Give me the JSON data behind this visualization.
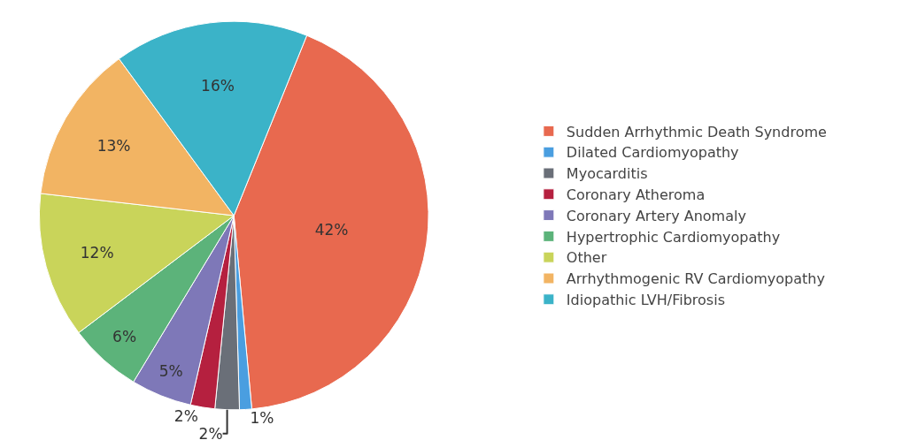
{
  "chart_data": {
    "type": "pie",
    "categories": [
      "Sudden Arrhythmic Death Syndrome",
      "Dilated Cardiomyopathy",
      "Myocarditis",
      "Coronary Atheroma",
      "Coronary Artery Anomaly",
      "Hypertrophic Cardiomyopathy",
      "Other",
      "Arrhythmogenic RV Cardiomyopathy",
      "Idiopathic LVH/Fibrosis"
    ],
    "values": [
      42,
      1,
      2,
      2,
      5,
      6,
      12,
      13,
      16
    ],
    "value_labels": [
      "42%",
      "1%",
      "2%",
      "2%",
      "5%",
      "6%",
      "12%",
      "13%",
      "16%"
    ],
    "colors": [
      "#e8694f",
      "#4a9ee0",
      "#6a6f78",
      "#b5203f",
      "#7e78b8",
      "#5cb37a",
      "#c9d45a",
      "#f2b463",
      "#3bb3c8"
    ],
    "legend": "right"
  }
}
